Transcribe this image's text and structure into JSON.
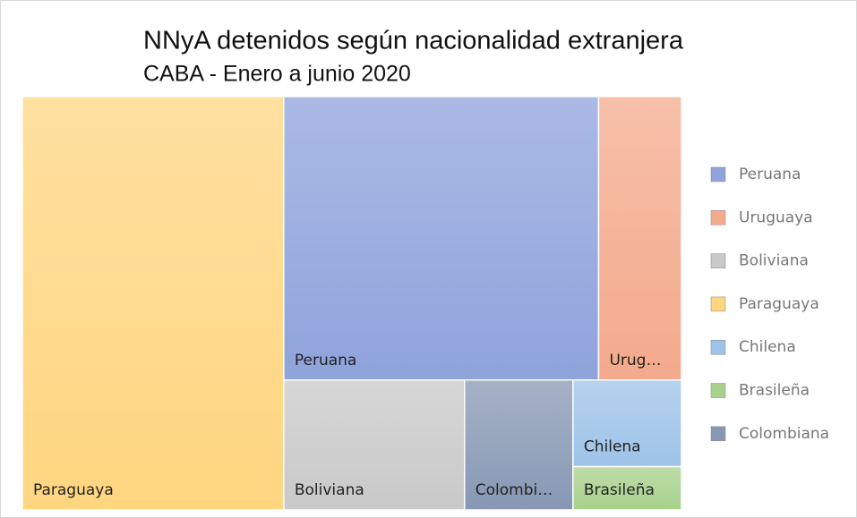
{
  "chart_data": {
    "type": "treemap",
    "title": "NNyA detenidos según nacionalidad extranjera",
    "subtitle": "CABA - Enero a junio 2020",
    "series": [
      {
        "name": "Peruana",
        "label": "Peruana",
        "color": "#8fa3dc",
        "values": [
          19
        ]
      },
      {
        "name": "Uruguaya",
        "label": "Urug…",
        "color": "#f4aa8c",
        "values": [
          5
        ]
      },
      {
        "name": "Boliviana",
        "label": "Boliviana",
        "color": "#c9c9c9",
        "values": [
          5
        ]
      },
      {
        "name": "Paraguaya",
        "label": "Paraguaya",
        "color": "#ffd680",
        "values": [
          23
        ]
      },
      {
        "name": "Chilena",
        "label": "Chilena",
        "color": "#9ec3e8",
        "values": [
          2
        ]
      },
      {
        "name": "Brasileña",
        "label": "Brasileña",
        "color": "#a8d18c",
        "values": [
          1
        ]
      },
      {
        "name": "Colombiana",
        "label": "Colombi…",
        "color": "#8898b4",
        "values": [
          3
        ]
      }
    ],
    "legend": "right"
  }
}
